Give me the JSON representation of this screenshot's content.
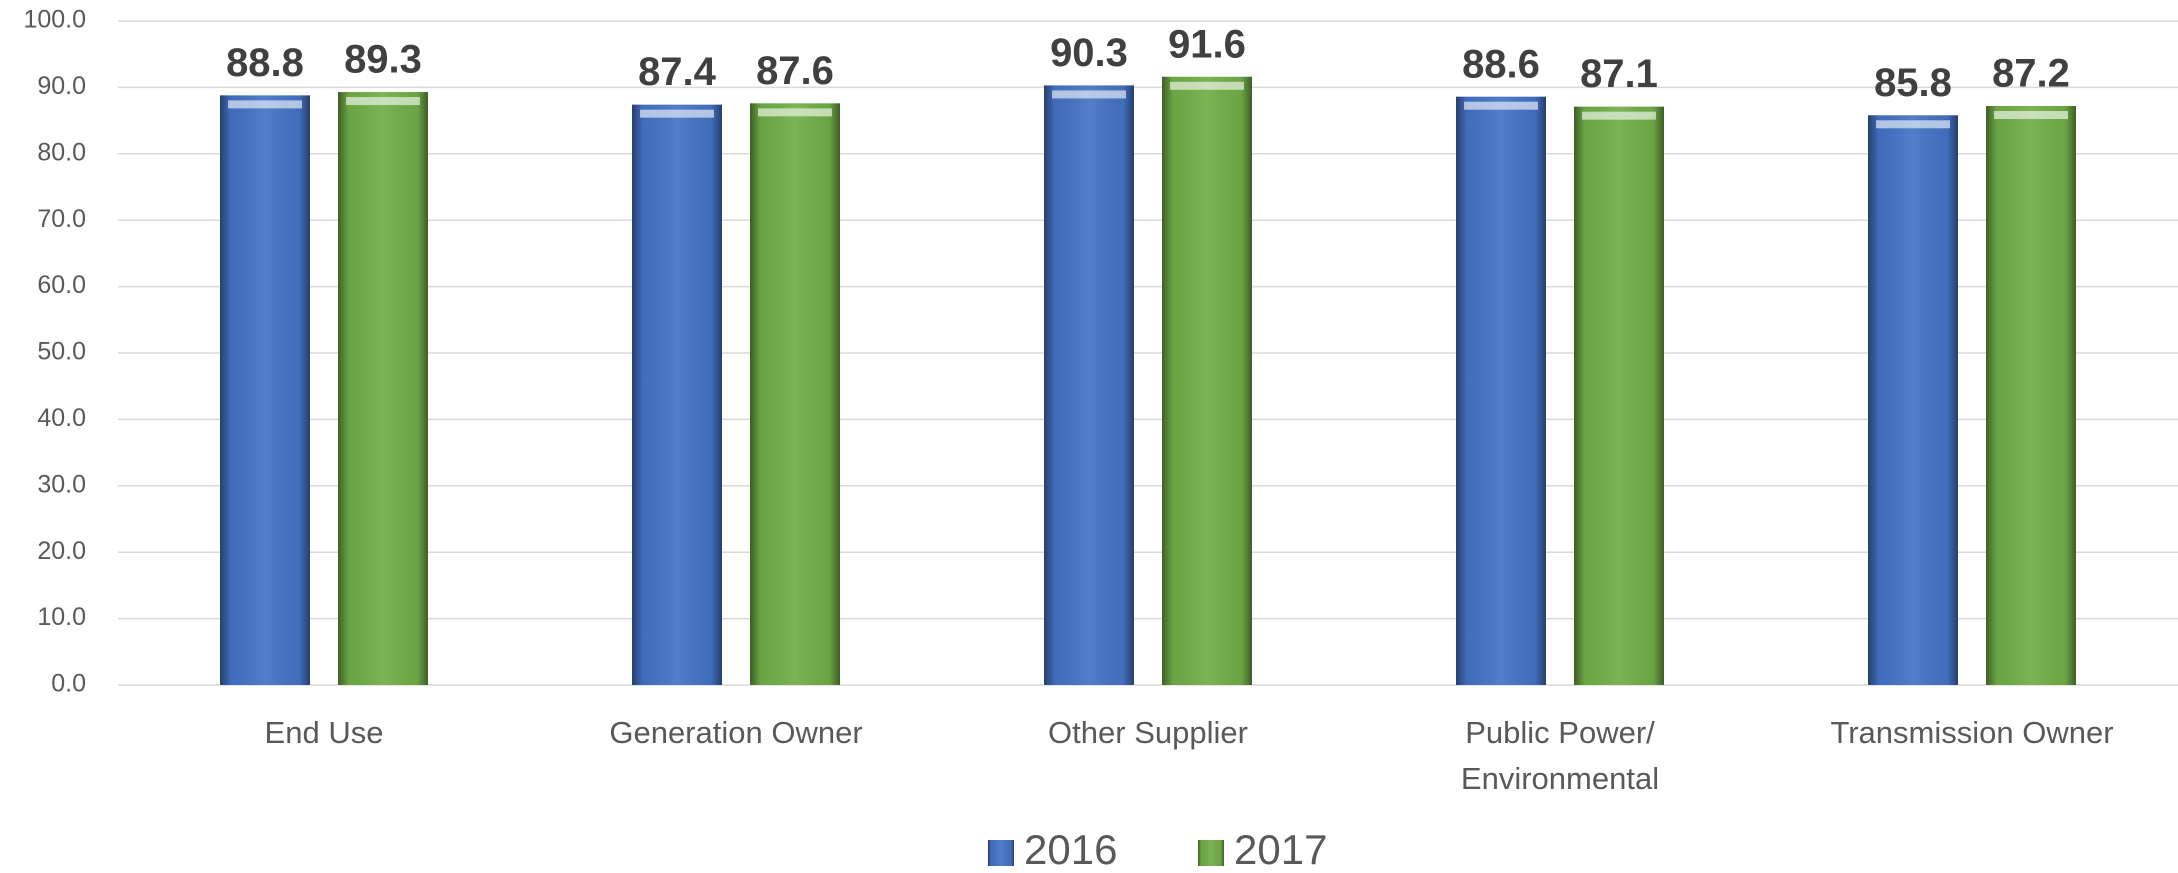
{
  "chart_data": {
    "type": "bar",
    "categories": [
      "End Use",
      "Generation Owner",
      "Other Supplier",
      "Public Power/\nEnvironmental",
      "Transmission Owner"
    ],
    "series": [
      {
        "name": "2016",
        "color": "#4472c4",
        "values": [
          88.8,
          87.4,
          90.3,
          88.6,
          85.8
        ]
      },
      {
        "name": "2017",
        "color": "#70ad47",
        "values": [
          89.3,
          87.6,
          91.6,
          87.1,
          87.2
        ]
      }
    ],
    "ylim": [
      0,
      100
    ],
    "yticks": [
      {
        "value": 0,
        "label": "0.0"
      },
      {
        "value": 10,
        "label": "10.0"
      },
      {
        "value": 20,
        "label": "20.0"
      },
      {
        "value": 30,
        "label": "30.0"
      },
      {
        "value": 40,
        "label": "40.0"
      },
      {
        "value": 50,
        "label": "50.0"
      },
      {
        "value": 60,
        "label": "60.0"
      },
      {
        "value": 70,
        "label": "70.0"
      },
      {
        "value": 80,
        "label": "80.0"
      },
      {
        "value": 90,
        "label": "90.0"
      },
      {
        "value": 100,
        "label": "100.0"
      }
    ],
    "grid": true,
    "legend": "bottom"
  }
}
